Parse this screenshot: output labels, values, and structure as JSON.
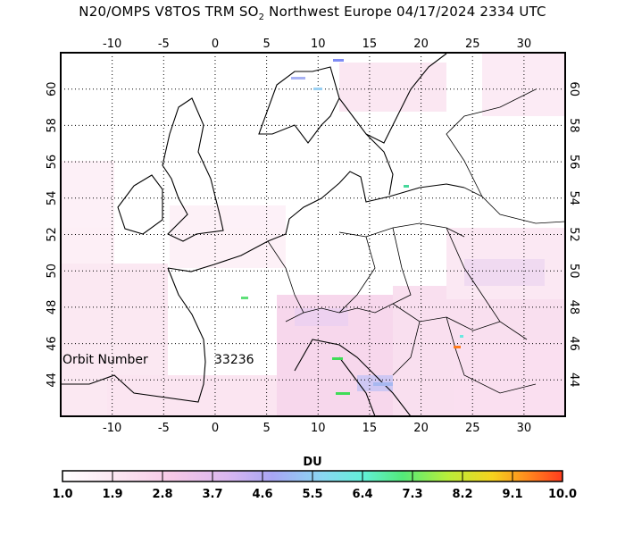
{
  "title": {
    "prefix": "N20/OMPS V8TOS TRM SO",
    "subscript": "2",
    "suffix": " Northwest Europe 04/17/2024 2334 UTC"
  },
  "map": {
    "lon_range": [
      -15,
      34
    ],
    "lat_range": [
      42,
      62
    ],
    "lon_ticks": [
      -10,
      -5,
      0,
      5,
      10,
      15,
      20,
      25,
      30
    ],
    "lat_ticks": [
      44,
      46,
      48,
      50,
      52,
      54,
      56,
      58,
      60
    ],
    "orbit_label": "Orbit Number",
    "orbit_number": "33236"
  },
  "colorbar": {
    "unit_label": "DU",
    "ticks": [
      "1.0",
      "1.9",
      "2.8",
      "3.7",
      "4.6",
      "5.5",
      "6.4",
      "7.3",
      "8.2",
      "9.1",
      "10.0"
    ],
    "min": 1.0,
    "max": 10.0
  }
}
